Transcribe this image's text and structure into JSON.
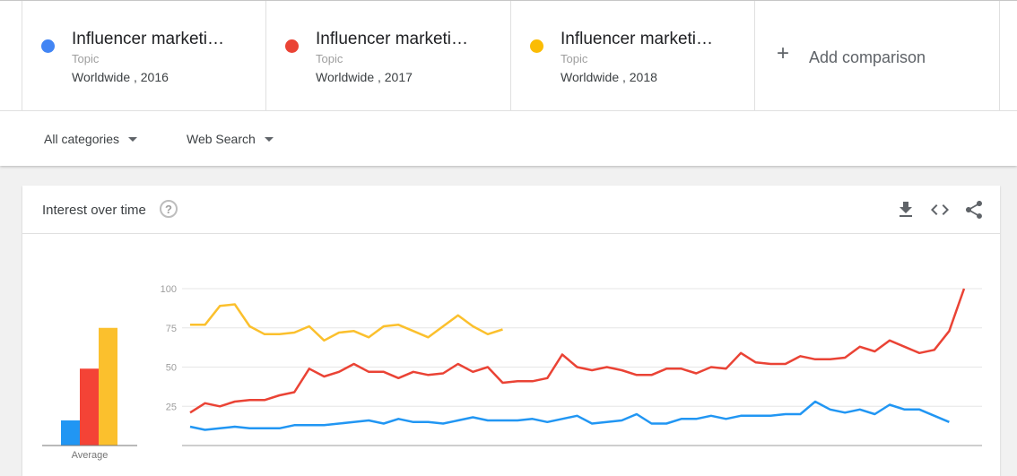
{
  "terms": [
    {
      "name": "Influencer marketi…",
      "kind": "Topic",
      "scope": "Worldwide , 2016",
      "color": "#4285f4"
    },
    {
      "name": "Influencer marketi…",
      "kind": "Topic",
      "scope": "Worldwide , 2017",
      "color": "#ea4335"
    },
    {
      "name": "Influencer marketi…",
      "kind": "Topic",
      "scope": "Worldwide , 2018",
      "color": "#fbbc04"
    }
  ],
  "add_comparison": {
    "icon": "plus-icon",
    "label": "Add comparison"
  },
  "filters": {
    "category": "All categories",
    "search_type": "Web Search"
  },
  "card": {
    "title": "Interest over time",
    "help_icon": "?",
    "tools": [
      "download-icon",
      "embed-code-icon",
      "share-icon"
    ]
  },
  "chart_data": {
    "type": "line",
    "ylim": [
      0,
      100
    ],
    "yticks": [
      25,
      50,
      75,
      100
    ],
    "grid": true,
    "series": [
      {
        "color": "#2196f3",
        "values": [
          12,
          10,
          11,
          12,
          11,
          11,
          11,
          13,
          13,
          13,
          14,
          15,
          16,
          14,
          17,
          15,
          15,
          14,
          16,
          18,
          16,
          16,
          16,
          17,
          15,
          17,
          19,
          14,
          15,
          16,
          20,
          14,
          14,
          17,
          17,
          19,
          17,
          19,
          19,
          19,
          20,
          20,
          28,
          23,
          21,
          23,
          20,
          26,
          23,
          23,
          19,
          15
        ]
      },
      {
        "color": "#ea4335",
        "values": [
          21,
          27,
          25,
          28,
          29,
          29,
          32,
          34,
          49,
          44,
          47,
          52,
          47,
          47,
          43,
          47,
          45,
          46,
          52,
          47,
          50,
          40,
          41,
          41,
          43,
          58,
          50,
          48,
          50,
          48,
          45,
          45,
          49,
          49,
          46,
          50,
          49,
          59,
          53,
          52,
          52,
          57,
          55,
          55,
          56,
          63,
          60,
          67,
          63,
          59,
          61,
          73,
          100
        ]
      },
      {
        "color": "#fbc02d",
        "values": [
          77,
          77,
          89,
          90,
          76,
          71,
          71,
          72,
          76,
          67,
          72,
          73,
          69,
          76,
          77,
          73,
          69,
          76,
          83,
          76,
          71,
          74
        ]
      }
    ],
    "averages": {
      "label": "Average",
      "values": [
        16,
        49,
        75
      ],
      "colors": [
        "#2196f3",
        "#f44336",
        "#fbc02d"
      ]
    }
  }
}
